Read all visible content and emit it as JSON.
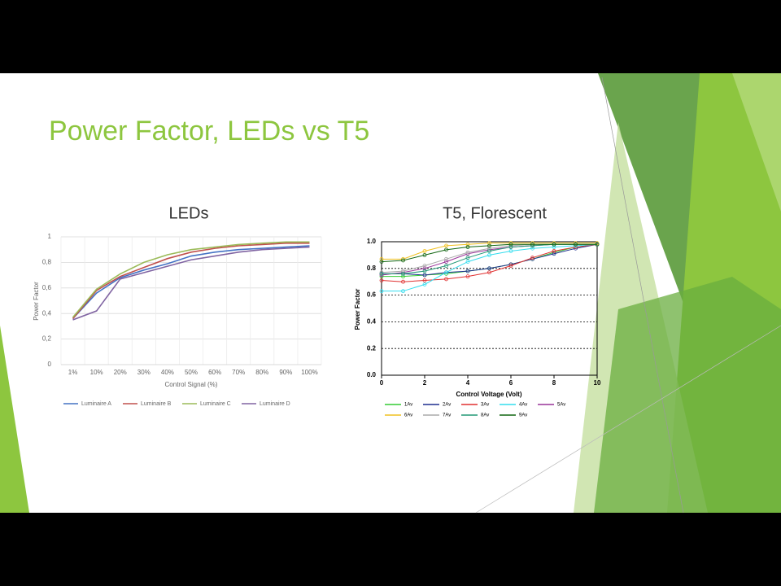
{
  "slide": {
    "title": "Power Factor, LEDs vs T5"
  },
  "chart_data": [
    {
      "type": "line",
      "title": "LEDs",
      "x_label": "Control Signal (%)",
      "y_label": "Power Factor",
      "categories": [
        "1%",
        "10%",
        "20%",
        "30%",
        "40%",
        "50%",
        "60%",
        "70%",
        "80%",
        "90%",
        "100%"
      ],
      "ylim": [
        0,
        1
      ],
      "yticks": [
        0,
        {
          "value": 0.2,
          "label": "0,2"
        },
        {
          "value": 0.4,
          "label": "0,4"
        },
        {
          "value": 0.6,
          "label": "0,6"
        },
        {
          "value": 0.8,
          "label": "0,8"
        },
        1
      ],
      "grid": true,
      "legend": "bottom",
      "series": [
        {
          "name": "Luminaire A",
          "color": "#4472c4",
          "values": [
            0.36,
            0.56,
            0.68,
            0.74,
            0.79,
            0.85,
            0.88,
            0.9,
            0.91,
            0.92,
            0.93
          ]
        },
        {
          "name": "Luminaire B",
          "color": "#c0504d",
          "values": [
            0.36,
            0.58,
            0.69,
            0.76,
            0.83,
            0.88,
            0.91,
            0.93,
            0.94,
            0.95,
            0.95
          ]
        },
        {
          "name": "Luminaire C",
          "color": "#9bbb59",
          "values": [
            0.37,
            0.59,
            0.71,
            0.8,
            0.86,
            0.9,
            0.92,
            0.94,
            0.95,
            0.96,
            0.96
          ]
        },
        {
          "name": "Luminaire D",
          "color": "#8064a2",
          "values": [
            0.35,
            0.42,
            0.67,
            0.72,
            0.77,
            0.82,
            0.85,
            0.88,
            0.9,
            0.91,
            0.92
          ]
        }
      ]
    },
    {
      "type": "line",
      "title": "T5, Florescent",
      "x_label": "Control Voltage (Volt)",
      "y_label": "Power Factor",
      "x": [
        0,
        1,
        2,
        3,
        4,
        5,
        6,
        7,
        8,
        9,
        10
      ],
      "xlim": [
        0,
        10
      ],
      "xticks": [
        0,
        2,
        4,
        6,
        8,
        10
      ],
      "ylim": [
        0,
        1
      ],
      "yticks": [
        {
          "value": 0,
          "label": "0.0"
        },
        {
          "value": 0.2,
          "label": "0.2"
        },
        {
          "value": 0.4,
          "label": "0.4"
        },
        {
          "value": 0.6,
          "label": "0.6"
        },
        {
          "value": 0.8,
          "label": "0.8"
        },
        {
          "value": 1,
          "label": "1.0"
        }
      ],
      "grid": true,
      "legend": "bottom",
      "series": [
        {
          "name": "1Av",
          "color": "#33cc33",
          "values": [
            0.74,
            0.74,
            0.75,
            0.76,
            0.78,
            0.8,
            0.83,
            0.87,
            0.92,
            0.96,
            0.98
          ]
        },
        {
          "name": "2Av",
          "color": "#1f2f8f",
          "values": [
            0.76,
            0.76,
            0.75,
            0.77,
            0.78,
            0.8,
            0.83,
            0.87,
            0.91,
            0.95,
            0.98
          ]
        },
        {
          "name": "3Av",
          "color": "#e03030",
          "values": [
            0.71,
            0.7,
            0.71,
            0.72,
            0.74,
            0.77,
            0.82,
            0.88,
            0.93,
            0.96,
            0.98
          ]
        },
        {
          "name": "4Av",
          "color": "#33ddee",
          "values": [
            0.63,
            0.63,
            0.68,
            0.77,
            0.85,
            0.9,
            0.93,
            0.95,
            0.96,
            0.97,
            0.98
          ]
        },
        {
          "name": "5Av",
          "color": "#993399",
          "values": [
            0.75,
            0.77,
            0.8,
            0.85,
            0.91,
            0.94,
            0.96,
            0.97,
            0.98,
            0.98,
            0.98
          ]
        },
        {
          "name": "6Av",
          "color": "#f0c020",
          "values": [
            0.87,
            0.87,
            0.93,
            0.97,
            0.98,
            0.99,
            0.99,
            0.99,
            0.99,
            0.99,
            0.99
          ]
        },
        {
          "name": "7Av",
          "color": "#aaaaaa",
          "values": [
            0.77,
            0.78,
            0.82,
            0.87,
            0.92,
            0.95,
            0.97,
            0.98,
            0.98,
            0.98,
            0.98
          ]
        },
        {
          "name": "8Av",
          "color": "#229977",
          "values": [
            0.76,
            0.76,
            0.78,
            0.82,
            0.88,
            0.93,
            0.96,
            0.97,
            0.98,
            0.98,
            0.98
          ]
        },
        {
          "name": "9Av",
          "color": "#116611",
          "values": [
            0.85,
            0.86,
            0.9,
            0.94,
            0.96,
            0.97,
            0.98,
            0.98,
            0.98,
            0.98,
            0.98
          ]
        }
      ]
    }
  ]
}
